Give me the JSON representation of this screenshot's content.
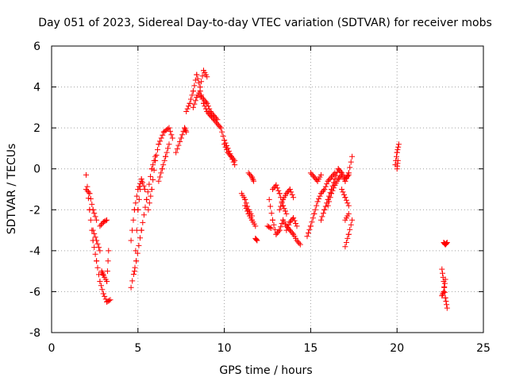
{
  "chart_data": {
    "type": "scatter",
    "title": "Day 051 of 2023, Sidereal Day-to-day VTEC variation (SDTVAR) for receiver mobs",
    "xlabel": "GPS time / hours",
    "ylabel": "SDTVAR / TECUs",
    "xlim": [
      0,
      25
    ],
    "ylim": [
      -8,
      6
    ],
    "xticks": [
      0,
      5,
      10,
      15,
      20,
      25
    ],
    "yticks": [
      -8,
      -6,
      -4,
      -2,
      0,
      2,
      4,
      6
    ],
    "grid": true,
    "marker": "+",
    "color": "#ff0000",
    "segments": [
      {
        "x": [
          2.0,
          2.2,
          2.4,
          2.6,
          2.8,
          3.0,
          3.2,
          3.4
        ],
        "y": [
          -0.3,
          -2.0,
          -3.5,
          -4.5,
          -5.5,
          -6.1,
          -6.5,
          -6.4
        ]
      },
      {
        "x": [
          2.0,
          2.2,
          2.4,
          2.6
        ],
        "y": [
          -1.0,
          -1.2,
          -2.0,
          -2.5
        ]
      },
      {
        "x": [
          2.4,
          2.6,
          2.8
        ],
        "y": [
          -3.0,
          -3.5,
          -4.0
        ]
      },
      {
        "x": [
          2.9,
          3.0,
          3.2,
          3.3
        ],
        "y": [
          -5.0,
          -5.2,
          -5.5,
          -4.0
        ]
      },
      {
        "x": [
          2.8,
          3.0,
          3.2
        ],
        "y": [
          -2.8,
          -2.6,
          -2.5
        ]
      },
      {
        "x": [
          4.6,
          4.9,
          5.2,
          5.5,
          5.8,
          6.0
        ],
        "y": [
          -5.8,
          -4.5,
          -3.0,
          -1.5,
          0.0,
          0.6
        ]
      },
      {
        "x": [
          4.8,
          5.0,
          5.2,
          5.4
        ],
        "y": [
          -5.0,
          -2.0,
          -0.5,
          -1.0
        ]
      },
      {
        "x": [
          4.6,
          4.8,
          5.0,
          5.2
        ],
        "y": [
          -3.5,
          -2.0,
          -1.0,
          -0.6
        ]
      },
      {
        "x": [
          5.6,
          5.8,
          6.0,
          6.2,
          6.5,
          6.8,
          7.0
        ],
        "y": [
          -2.0,
          -1.0,
          0.4,
          1.2,
          1.8,
          2.0,
          1.5
        ]
      },
      {
        "x": [
          6.2,
          6.4,
          6.6,
          6.8
        ],
        "y": [
          -0.6,
          0.0,
          0.6,
          1.2
        ]
      },
      {
        "x": [
          7.2,
          7.5,
          7.7,
          7.8
        ],
        "y": [
          0.8,
          1.5,
          2.0,
          1.8
        ]
      },
      {
        "x": [
          7.8,
          8.0,
          8.2,
          8.4,
          8.6,
          8.8,
          9.0
        ],
        "y": [
          2.8,
          3.2,
          3.8,
          4.6,
          4.0,
          4.8,
          4.5
        ]
      },
      {
        "x": [
          8.6,
          8.8,
          9.0,
          9.2,
          9.4,
          9.6
        ],
        "y": [
          3.6,
          3.4,
          3.2,
          2.8,
          2.6,
          2.4
        ]
      },
      {
        "x": [
          8.2,
          8.4,
          8.6,
          8.8,
          9.0,
          9.2,
          9.4,
          9.6,
          9.8,
          10.0,
          10.2,
          10.4,
          10.6
        ],
        "y": [
          3.0,
          3.5,
          3.8,
          3.2,
          2.8,
          2.6,
          2.4,
          2.2,
          2.0,
          1.4,
          1.0,
          0.6,
          0.2
        ]
      },
      {
        "x": [
          10.0,
          10.2,
          10.4,
          10.6
        ],
        "y": [
          1.2,
          0.8,
          0.6,
          0.4
        ]
      },
      {
        "x": [
          11.0,
          11.2,
          11.4,
          11.6
        ],
        "y": [
          -1.2,
          -1.5,
          -2.0,
          -2.3
        ]
      },
      {
        "x": [
          11.4,
          11.6,
          11.7
        ],
        "y": [
          -0.2,
          -0.4,
          -0.6
        ]
      },
      {
        "x": [
          11.8,
          11.9
        ],
        "y": [
          -3.4,
          -3.5
        ]
      },
      {
        "x": [
          11.2,
          11.4,
          11.6,
          11.8
        ],
        "y": [
          -1.8,
          -2.2,
          -2.5,
          -2.8
        ]
      },
      {
        "x": [
          12.6,
          12.8,
          13.0,
          13.2,
          13.4,
          13.6,
          13.8,
          14.0,
          14.2,
          14.4
        ],
        "y": [
          -1.5,
          -2.5,
          -3.2,
          -3.0,
          -2.5,
          -2.8,
          -3.0,
          -3.2,
          -3.5,
          -3.7
        ]
      },
      {
        "x": [
          12.8,
          13.0,
          13.2,
          13.4,
          13.6
        ],
        "y": [
          -1.0,
          -0.8,
          -1.2,
          -1.8,
          -2.2
        ]
      },
      {
        "x": [
          13.2,
          13.4,
          13.6,
          13.8,
          14.0
        ],
        "y": [
          -2.0,
          -1.5,
          -1.2,
          -1.0,
          -1.4
        ]
      },
      {
        "x": [
          13.6,
          13.8,
          14.0,
          14.2
        ],
        "y": [
          -3.0,
          -2.6,
          -2.4,
          -2.8
        ]
      },
      {
        "x": [
          12.5,
          12.7
        ],
        "y": [
          -2.8,
          -2.9
        ]
      },
      {
        "x": [
          14.8,
          15.0,
          15.2,
          15.4,
          15.6,
          15.8,
          16.0,
          16.2,
          16.4
        ],
        "y": [
          -3.3,
          -2.8,
          -2.2,
          -1.6,
          -1.2,
          -1.0,
          -0.6,
          -0.4,
          -0.2
        ]
      },
      {
        "x": [
          15.0,
          15.2,
          15.4,
          15.6
        ],
        "y": [
          -0.2,
          -0.4,
          -0.6,
          -0.3
        ]
      },
      {
        "x": [
          15.6,
          15.8,
          16.0,
          16.2,
          16.4,
          16.6,
          16.8,
          17.0,
          17.2
        ],
        "y": [
          -2.5,
          -2.0,
          -1.5,
          -1.0,
          -0.5,
          0.0,
          -0.2,
          -0.5,
          -0.3
        ]
      },
      {
        "x": [
          16.0,
          16.2,
          16.4,
          16.6,
          16.8,
          17.0,
          17.2,
          17.4
        ],
        "y": [
          -1.8,
          -1.2,
          -0.8,
          -0.5,
          -0.3,
          -0.6,
          -0.2,
          0.6
        ]
      },
      {
        "x": [
          16.8,
          17.0,
          17.2
        ],
        "y": [
          -1.0,
          -1.4,
          -1.8
        ]
      },
      {
        "x": [
          17.0,
          17.2,
          17.4
        ],
        "y": [
          -3.8,
          -3.2,
          -2.5
        ]
      },
      {
        "x": [
          17.0,
          17.2
        ],
        "y": [
          -2.5,
          -2.2
        ]
      },
      {
        "x": [
          19.9,
          20.0,
          20.1
        ],
        "y": [
          0.2,
          0.8,
          1.2
        ]
      },
      {
        "x": [
          20.0,
          20.05
        ],
        "y": [
          0.0,
          0.4
        ]
      },
      {
        "x": [
          22.6,
          22.7,
          22.8,
          22.9
        ],
        "y": [
          -4.9,
          -5.5,
          -6.3,
          -6.8
        ]
      },
      {
        "x": [
          22.7,
          22.8,
          22.9
        ],
        "y": [
          -3.6,
          -3.7,
          -3.6
        ]
      },
      {
        "x": [
          22.6,
          22.7,
          22.8
        ],
        "y": [
          -6.2,
          -6.0,
          -5.4
        ]
      }
    ]
  }
}
